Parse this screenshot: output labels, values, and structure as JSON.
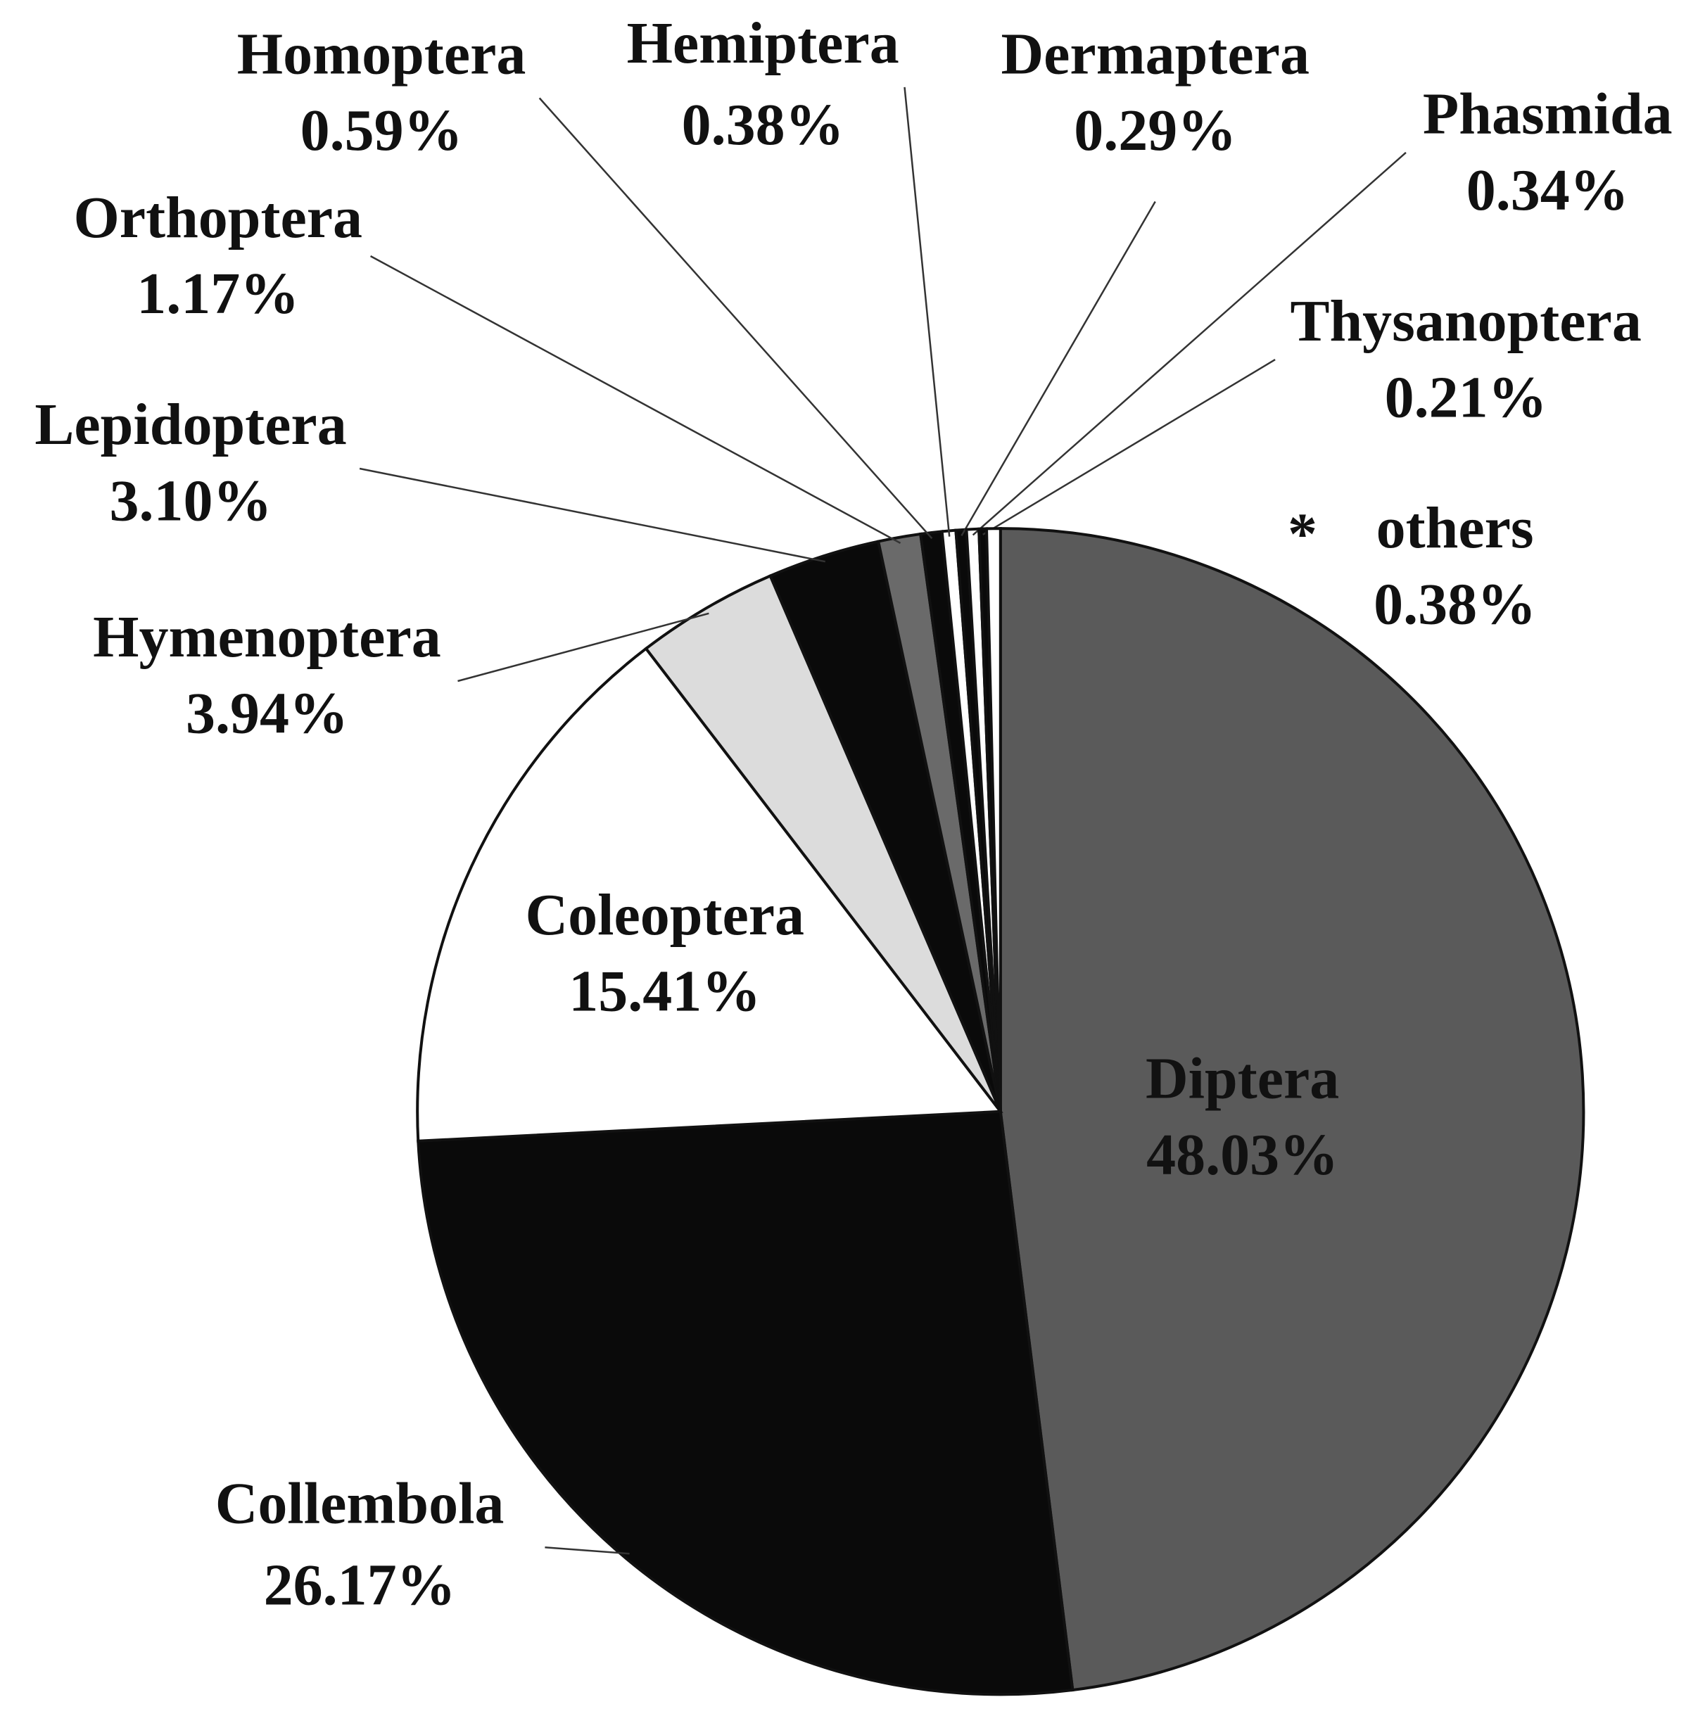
{
  "chart_data": {
    "type": "pie",
    "categories": [
      "Diptera",
      "Collembola",
      "Coleoptera",
      "Hymenoptera",
      "Lepidoptera",
      "Orthoptera",
      "Homoptera",
      "Hemiptera",
      "Dermaptera",
      "Phasmida",
      "Thysanoptera",
      "others"
    ],
    "values": [
      48.03,
      26.17,
      15.41,
      3.94,
      3.1,
      1.17,
      0.59,
      0.38,
      0.29,
      0.34,
      0.21,
      0.38
    ],
    "value_labels": [
      "48.03%",
      "26.17%",
      "15.41%",
      "3.94%",
      "3.10%",
      "1.17%",
      "0.59%",
      "0.38%",
      "0.29%",
      "0.34%",
      "0.21%",
      "0.38%"
    ],
    "colors": [
      "#5a5a5a",
      "#0a0a0a",
      "#ffffff",
      "#dcdcdc",
      "#0a0a0a",
      "#6a6a6a",
      "#0a0a0a",
      "#ffffff",
      "#0a0a0a",
      "#ffffff",
      "#0a0a0a",
      "#ffffff"
    ],
    "annotation": "*"
  }
}
